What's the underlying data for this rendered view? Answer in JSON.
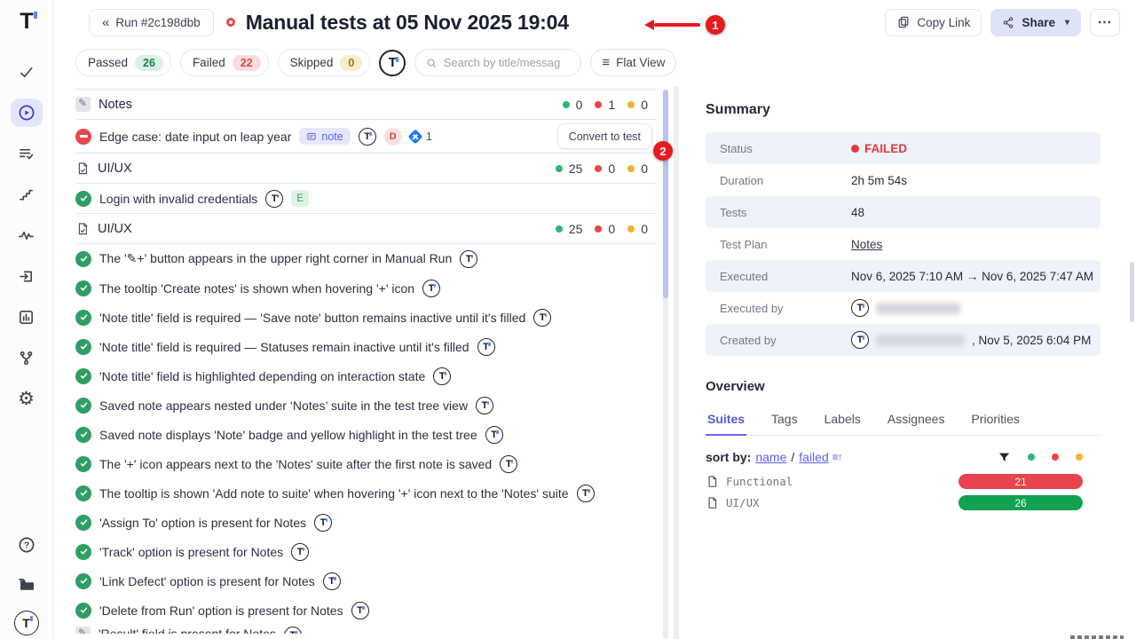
{
  "colors": {
    "accent_purple": "#5d5fef",
    "passed_green": "#2bb673",
    "failed_red": "#e5484d",
    "skipped_yellow": "#f0b429",
    "bar_red": "#e8434e",
    "bar_green": "#12a150",
    "annotation_red": "#e51b1f"
  },
  "header": {
    "back_label": "Run #2c198dbb",
    "back_chevrons": "«",
    "title": "Manual tests at 05 Nov 2025 19:04",
    "copy_link_label": "Copy Link",
    "share_label": "Share",
    "more_label": "⋯",
    "annotation_1": "1"
  },
  "filters": {
    "chips": [
      {
        "label": "Passed",
        "count": "26",
        "type": "passed"
      },
      {
        "label": "Failed",
        "count": "22",
        "type": "failed"
      },
      {
        "label": "Skipped",
        "count": "0",
        "type": "skipped"
      }
    ],
    "search_placeholder": "Search by title/messag",
    "flat_view_label": "Flat View",
    "flat_view_icon": "≡"
  },
  "test_list": {
    "annotation_2": "2",
    "rows": [
      {
        "kind": "suite",
        "icon": "memo",
        "title": "Notes",
        "passed": "0",
        "failed": "1",
        "skipped": "0"
      },
      {
        "kind": "test",
        "status": "failed",
        "tall": true,
        "title": "Edge case: date input on leap year",
        "note_badge": "note",
        "avatar": true,
        "defect_badge": "D",
        "jira_count": "1",
        "action_label": "Convert to test"
      },
      {
        "kind": "suite",
        "icon": "doc",
        "title": "UI/UX",
        "passed": "25",
        "failed": "0",
        "skipped": "0"
      },
      {
        "kind": "test",
        "status": "passed",
        "title": "Login with invalid credentials",
        "avatar": true,
        "tag_badge": "E"
      },
      {
        "kind": "suite",
        "icon": "doc",
        "title": "UI/UX",
        "passed": "25",
        "failed": "0",
        "skipped": "0"
      },
      {
        "kind": "test",
        "status": "passed",
        "title": "The '✎+' button appears in the upper right corner in Manual Run",
        "avatar": true
      },
      {
        "kind": "test",
        "status": "passed",
        "title": "The tooltip 'Create notes' is shown when hovering '+' icon",
        "avatar": true
      },
      {
        "kind": "test",
        "status": "passed",
        "title": "'Note title' field is required — 'Save note' button remains inactive until it's filled",
        "avatar": true
      },
      {
        "kind": "test",
        "status": "passed",
        "title": "'Note title' field is required — Statuses remain inactive until it's filled",
        "avatar": true
      },
      {
        "kind": "test",
        "status": "passed",
        "title": "'Note title' field is highlighted depending on interaction state",
        "avatar": true
      },
      {
        "kind": "test",
        "status": "passed",
        "title": "Saved note appears nested under ‘Notes’ suite in the test tree view",
        "avatar": true
      },
      {
        "kind": "test",
        "status": "passed",
        "title": "Saved note displays 'Note' badge and yellow highlight in the test tree",
        "avatar": true
      },
      {
        "kind": "test",
        "status": "passed",
        "title": "The '+' icon appears next to the 'Notes' suite after the first note is saved",
        "avatar": true
      },
      {
        "kind": "test",
        "status": "passed",
        "title": "The tooltip is shown 'Add note to suite' when hovering '+' icon next to the 'Notes' suite",
        "avatar": true
      },
      {
        "kind": "test",
        "status": "passed",
        "title": "'Assign To' option is present for Notes",
        "avatar": true
      },
      {
        "kind": "test",
        "status": "passed",
        "title": "'Track' option is present for Notes",
        "avatar": true
      },
      {
        "kind": "test",
        "status": "passed",
        "title": "'Link Defect' option is present for Notes",
        "avatar": true
      },
      {
        "kind": "test",
        "status": "passed",
        "title": "'Delete from Run' option is present for Notes",
        "avatar": true
      },
      {
        "kind": "test",
        "status": "memo",
        "clipped": true,
        "title": "'Result' field is present for Notes",
        "avatar": true
      }
    ]
  },
  "summary": {
    "heading": "Summary",
    "rows": [
      {
        "label": "Status",
        "type": "status",
        "value": "FAILED"
      },
      {
        "label": "Duration",
        "type": "text",
        "value": "2h 5m 54s"
      },
      {
        "label": "Tests",
        "type": "text",
        "value": "48"
      },
      {
        "label": "Test Plan",
        "type": "link",
        "value": "Notes"
      },
      {
        "label": "Executed",
        "type": "text",
        "value": "Nov 6, 2025 7:10 AM → Nov 6, 2025 7:47 AM"
      },
      {
        "label": "Executed by",
        "type": "person",
        "suffix": "",
        "blur_width": 95
      },
      {
        "label": "Created by",
        "type": "person",
        "suffix": ", Nov 5, 2025 6:04 PM",
        "blur_width": 100
      }
    ]
  },
  "overview": {
    "heading": "Overview",
    "tabs": [
      {
        "label": "Suites",
        "active": true
      },
      {
        "label": "Tags",
        "active": false
      },
      {
        "label": "Labels",
        "active": false
      },
      {
        "label": "Assignees",
        "active": false
      },
      {
        "label": "Priorities",
        "active": false
      }
    ],
    "sort_prefix": "sort by:",
    "sort_links": [
      "name",
      "failed"
    ],
    "sort_separator": "/",
    "sort_glyph": "≡↑",
    "items": [
      {
        "name": "Functional",
        "count": "21",
        "bar": "red"
      },
      {
        "name": "UI/UX",
        "count": "26",
        "bar": "green"
      }
    ]
  }
}
